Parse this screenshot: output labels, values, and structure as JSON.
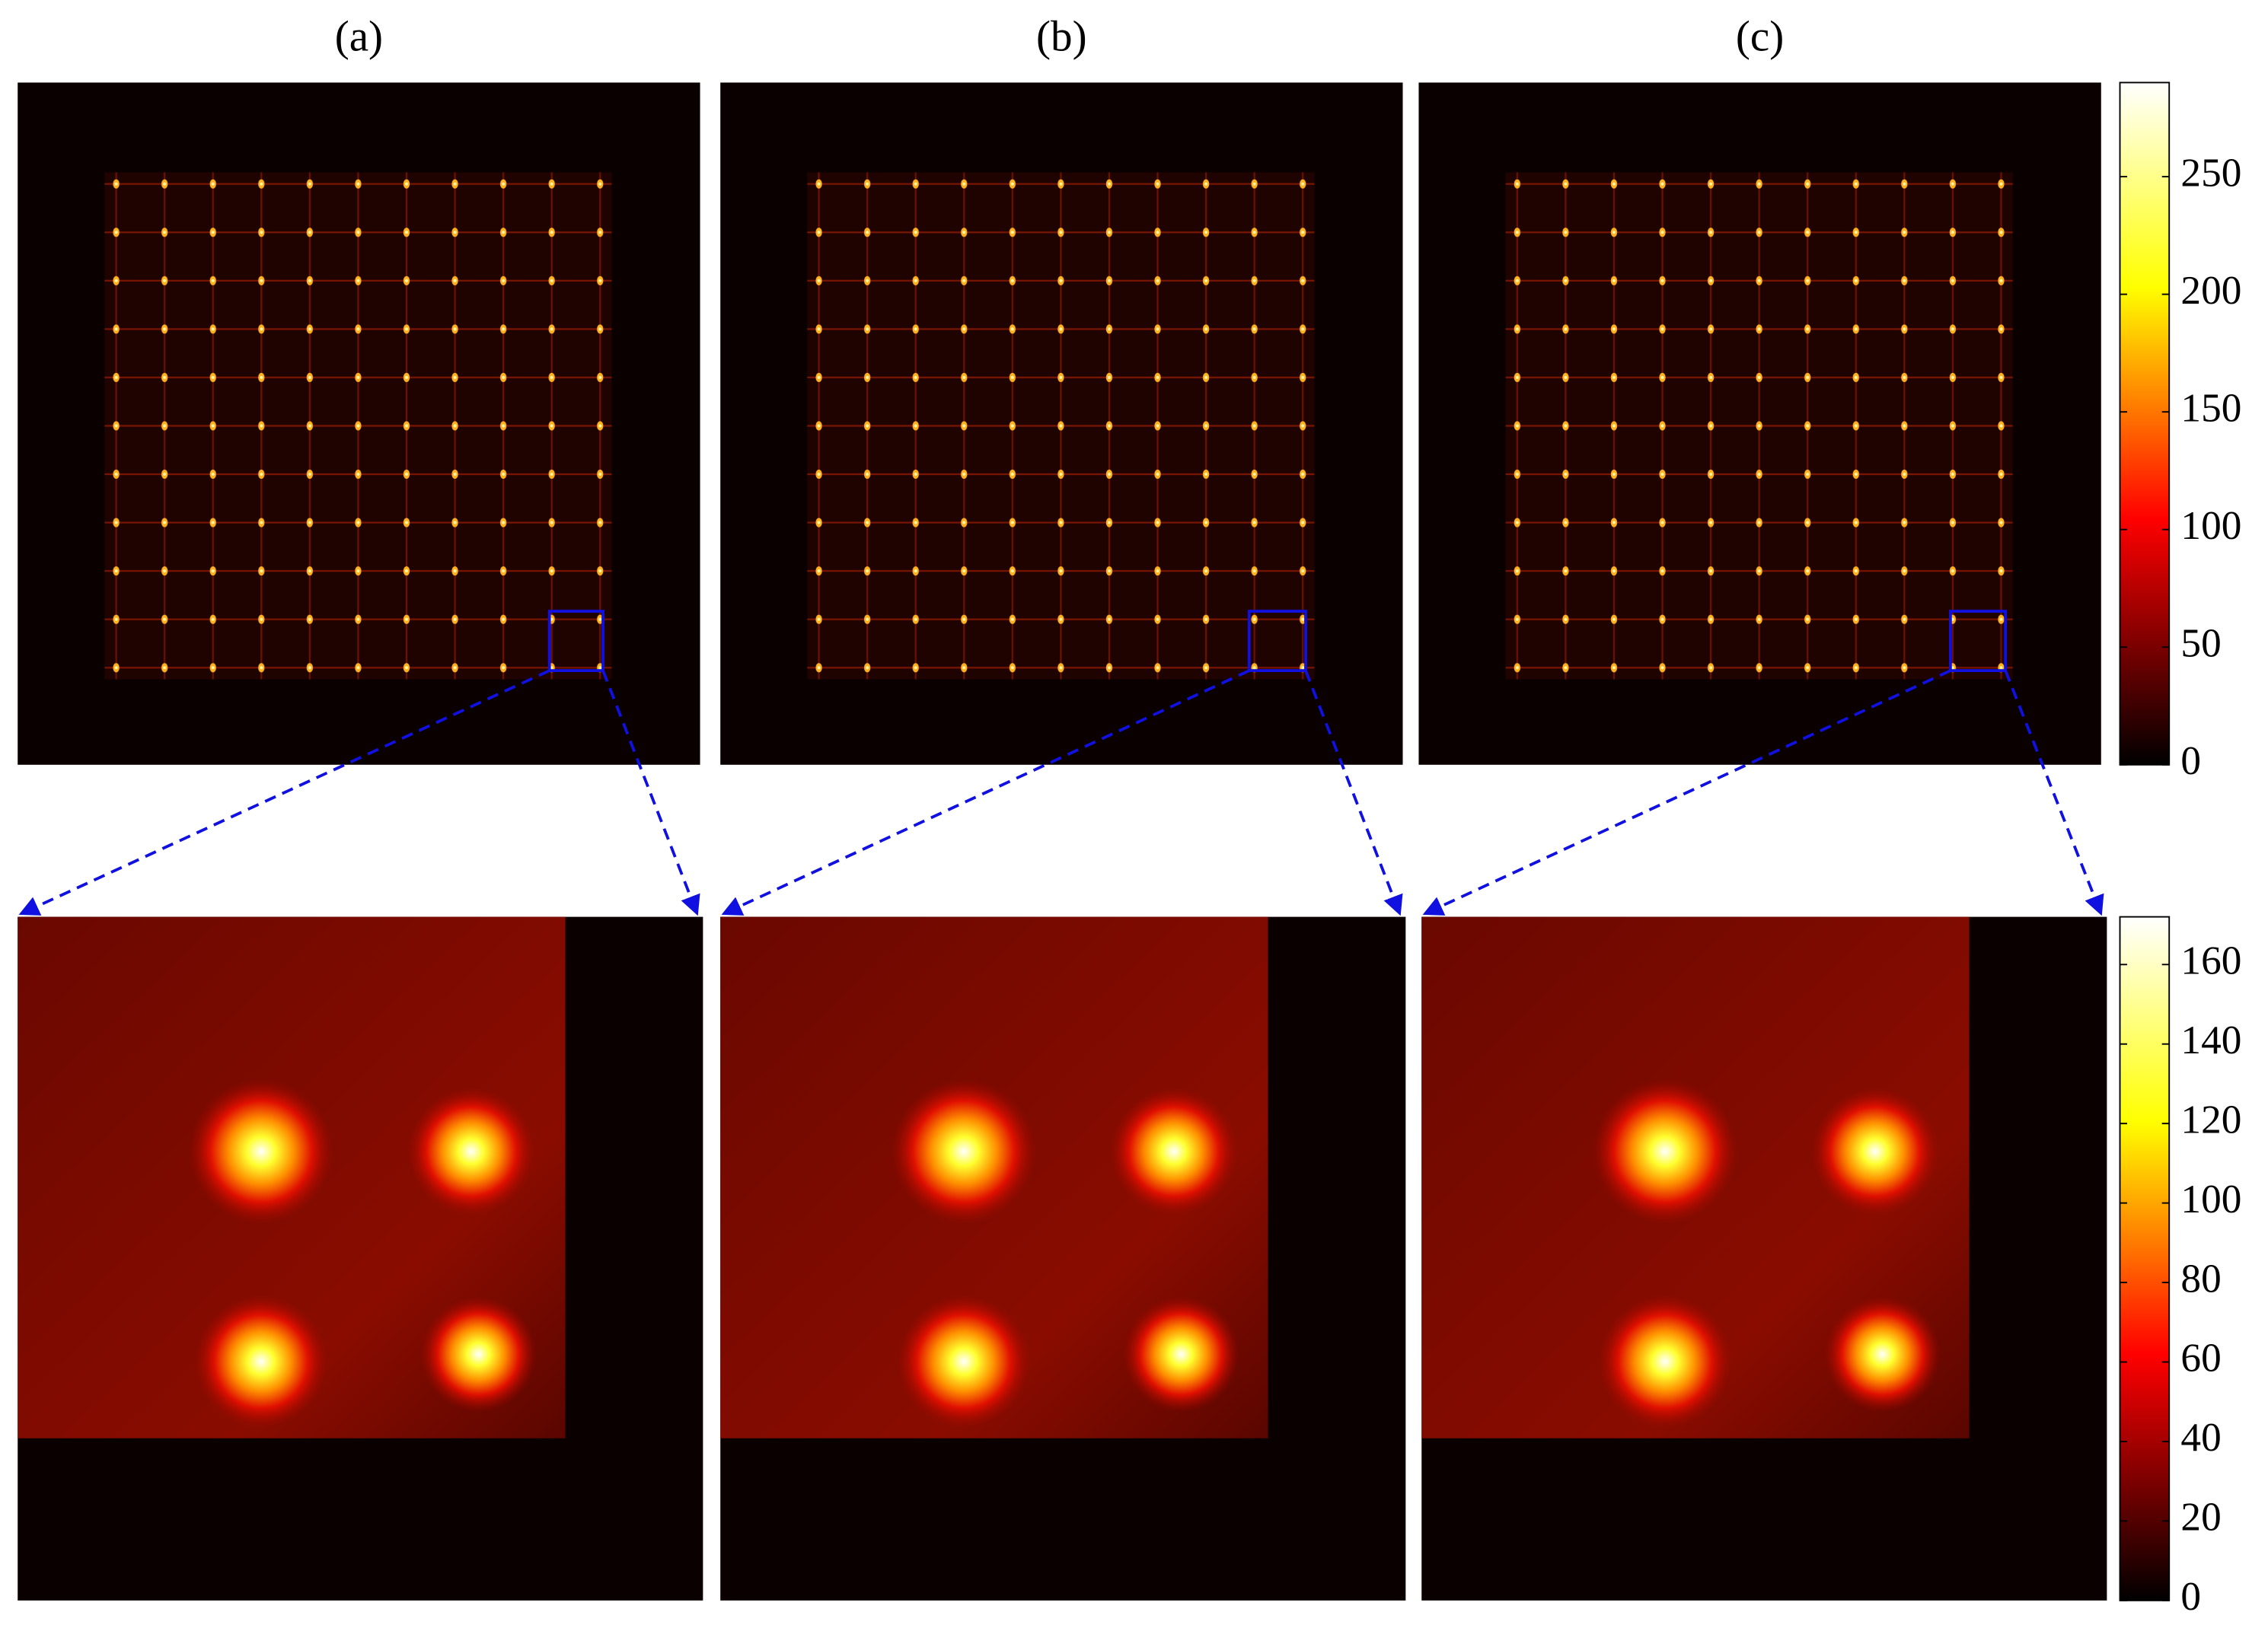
{
  "chart_data": [
    {
      "type": "heatmap",
      "panel_labels": [
        "(a)",
        "(b)",
        "(c)"
      ],
      "clim": [
        0,
        290
      ],
      "cticks": [
        0,
        50,
        100,
        150,
        200,
        250
      ]
    },
    {
      "type": "heatmap",
      "clim": [
        0,
        172
      ],
      "cticks": [
        0,
        20,
        40,
        60,
        80,
        100,
        120,
        140,
        160
      ]
    }
  ]
}
